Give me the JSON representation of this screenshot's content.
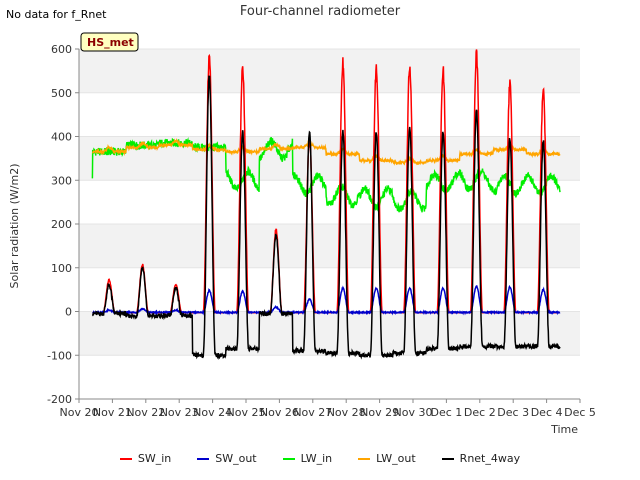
{
  "header": {
    "no_data_text": "No data for f_Rnet",
    "title": "Four-channel radiometer"
  },
  "badge": {
    "label": "HS_met"
  },
  "chart_data": {
    "type": "line",
    "title": "Four-channel radiometer",
    "xlabel": "Time",
    "ylabel": "Solar radiation (W/m2)",
    "ylim": [
      -200,
      600
    ],
    "xlim": [
      0,
      15
    ],
    "yticks": [
      -200,
      -100,
      0,
      100,
      200,
      300,
      400,
      500,
      600
    ],
    "xticks": [
      {
        "x": 0,
        "label": "Nov 20"
      },
      {
        "x": 1,
        "label": "Nov 21"
      },
      {
        "x": 2,
        "label": "Nov 22"
      },
      {
        "x": 3,
        "label": "Nov 23"
      },
      {
        "x": 4,
        "label": "Nov 24"
      },
      {
        "x": 5,
        "label": "Nov 25"
      },
      {
        "x": 6,
        "label": "Nov 26"
      },
      {
        "x": 7,
        "label": "Nov 27"
      },
      {
        "x": 8,
        "label": "Nov 28"
      },
      {
        "x": 9,
        "label": "Nov 29"
      },
      {
        "x": 10,
        "label": "Nov 30"
      },
      {
        "x": 11,
        "label": "Dec 1"
      },
      {
        "x": 12,
        "label": "Dec 2"
      },
      {
        "x": 13,
        "label": "Dec 3"
      },
      {
        "x": 14,
        "label": "Dec 4"
      },
      {
        "x": 15,
        "label": "Dec 5"
      }
    ],
    "grid": true,
    "legend_position": "bottom",
    "x_days_start": 0.4,
    "x_days_end": 14.4,
    "daily": {
      "sw_in_peak": [
        75,
        110,
        65,
        585,
        560,
        190,
        400,
        570,
        560,
        565,
        555,
        590,
        525,
        510
      ],
      "sw_out_peak": [
        5,
        8,
        5,
        50,
        48,
        12,
        30,
        55,
        55,
        55,
        55,
        60,
        58,
        52
      ],
      "rnet_peak": [
        60,
        100,
        55,
        540,
        410,
        175,
        410,
        410,
        410,
        420,
        410,
        460,
        395,
        390
      ],
      "rnet_night": [
        -5,
        -10,
        -10,
        -100,
        -85,
        -5,
        -90,
        -95,
        -100,
        -95,
        -85,
        -80,
        -80,
        -80
      ],
      "lw_in_level": [
        365,
        380,
        385,
        375,
        300,
        370,
        290,
        265,
        260,
        255,
        295,
        300,
        290,
        290
      ],
      "lw_out_level": [
        365,
        375,
        380,
        370,
        365,
        372,
        375,
        360,
        345,
        340,
        345,
        360,
        370,
        360
      ]
    },
    "series": [
      {
        "name": "SW_in",
        "color": "#ff0000"
      },
      {
        "name": "SW_out",
        "color": "#0000cc"
      },
      {
        "name": "LW_in",
        "color": "#00ee00"
      },
      {
        "name": "LW_out",
        "color": "#ffa500"
      },
      {
        "name": "Rnet_4way",
        "color": "#000000"
      }
    ]
  }
}
